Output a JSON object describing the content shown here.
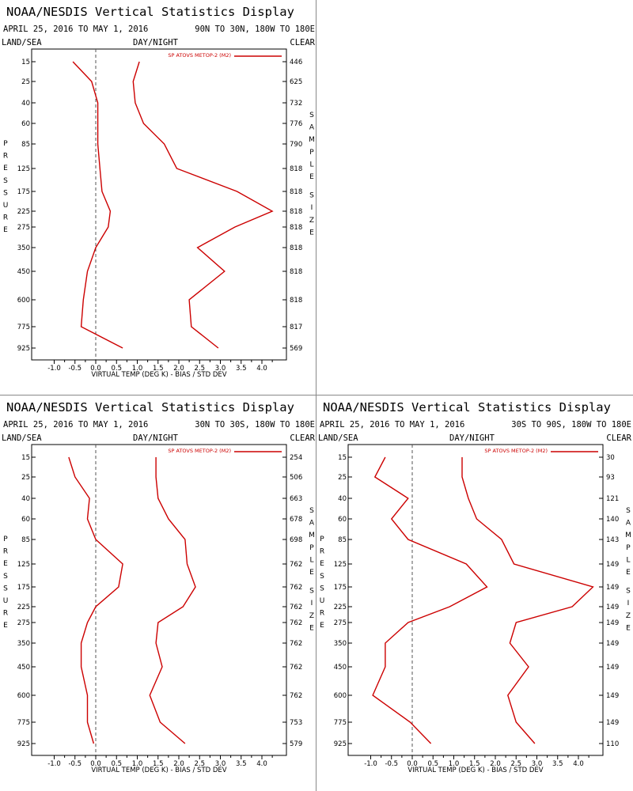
{
  "common": {
    "display_title": "NOAA/NESDIS Vertical Statistics Display",
    "date_range": "APRIL 25, 2016 TO MAY 1, 2016",
    "land_sea": "LAND/SEA",
    "day_night": "DAY/NIGHT",
    "clear": "CLEAR",
    "xlabel": "VIRTUAL TEMP (DEG K) - BIAS / STD DEV",
    "legend_label": "SP ATOVS METOP-2 (M2)",
    "left_axis_word": "PRESSURE",
    "right_axis_word": "SAMPLE SIZE",
    "series_color": "#cc0000"
  },
  "chart_data": [
    {
      "type": "line",
      "region": "90N TO 30N, 180W TO 180E",
      "pressure_levels": [
        15,
        25,
        40,
        60,
        85,
        125,
        175,
        225,
        275,
        350,
        450,
        600,
        775,
        925
      ],
      "xlim": [
        -1.5,
        4.5
      ],
      "x_ticks": [
        -1.0,
        -0.5,
        0.0,
        0.5,
        1.0,
        1.5,
        2.0,
        2.5,
        3.0,
        3.5,
        4.0
      ],
      "bias": [
        -0.55,
        -0.1,
        0.05,
        0.05,
        0.05,
        0.1,
        0.15,
        0.35,
        0.3,
        0.0,
        -0.2,
        -0.3,
        -0.35,
        0.65
      ],
      "std_dev": [
        1.05,
        0.9,
        0.95,
        1.15,
        1.65,
        1.95,
        3.4,
        4.25,
        3.35,
        2.45,
        3.1,
        2.25,
        2.3,
        2.95
      ],
      "sample_size": [
        "446",
        "625",
        "732",
        "776",
        "790",
        "818",
        "818",
        "818",
        "818",
        "818",
        "818",
        "818",
        "817",
        "569"
      ]
    },
    {
      "type": "line",
      "region": "30N TO 30S, 180W TO 180E",
      "pressure_levels": [
        15,
        25,
        40,
        60,
        85,
        125,
        175,
        225,
        275,
        350,
        450,
        600,
        775,
        925
      ],
      "xlim": [
        -1.5,
        4.5
      ],
      "x_ticks": [
        -1.0,
        -0.5,
        0.0,
        0.5,
        1.0,
        1.5,
        2.0,
        2.5,
        3.0,
        3.5,
        4.0
      ],
      "bias": [
        -0.65,
        -0.5,
        -0.15,
        -0.2,
        0.0,
        0.65,
        0.55,
        0.0,
        -0.2,
        -0.35,
        -0.35,
        -0.2,
        -0.2,
        -0.05
      ],
      "std_dev": [
        1.45,
        1.45,
        1.5,
        1.75,
        2.15,
        2.2,
        2.4,
        2.1,
        1.5,
        1.45,
        1.6,
        1.3,
        1.55,
        2.15
      ],
      "sample_size": [
        "254",
        "506",
        "663",
        "678",
        "698",
        "762",
        "762",
        "762",
        "762",
        "762",
        "762",
        "762",
        "753",
        "579"
      ]
    },
    {
      "type": "line",
      "region": "30S TO 90S, 180W TO 180E",
      "pressure_levels": [
        15,
        25,
        40,
        60,
        85,
        125,
        175,
        225,
        275,
        350,
        450,
        600,
        775,
        925
      ],
      "xlim": [
        -1.5,
        4.5
      ],
      "x_ticks": [
        -1.0,
        -0.5,
        0.0,
        0.5,
        1.0,
        1.5,
        2.0,
        2.5,
        3.0,
        3.5,
        4.0
      ],
      "bias": [
        -0.65,
        -0.9,
        -0.1,
        -0.5,
        -0.1,
        1.3,
        1.8,
        0.9,
        -0.1,
        -0.65,
        -0.65,
        -0.95,
        -0.05,
        0.45
      ],
      "std_dev": [
        1.2,
        1.2,
        1.35,
        1.55,
        2.15,
        2.45,
        4.35,
        3.85,
        2.5,
        2.35,
        2.8,
        2.3,
        2.5,
        2.95
      ],
      "sample_size": [
        "30",
        "93",
        "121",
        "140",
        "143",
        "149",
        "149",
        "149",
        "149",
        "149",
        "149",
        "149",
        "149",
        "110"
      ]
    }
  ]
}
